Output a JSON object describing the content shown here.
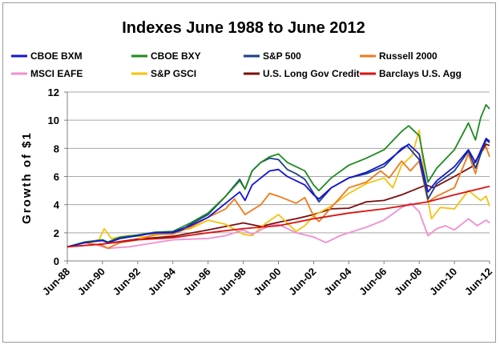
{
  "chart_data": {
    "type": "line",
    "title": "Indexes June 1988 to June 2012",
    "xlabel": "",
    "ylabel": "Growth of $1",
    "ylim": [
      0,
      12
    ],
    "yticks": [
      0,
      2,
      4,
      6,
      8,
      10,
      12
    ],
    "xlim": [
      1988.5,
      2012.5
    ],
    "xticks": [
      {
        "x": 1988.5,
        "label": "Jun-88"
      },
      {
        "x": 1990.5,
        "label": "Jun-90"
      },
      {
        "x": 1992.5,
        "label": "Jun-92"
      },
      {
        "x": 1994.5,
        "label": "Jun-94"
      },
      {
        "x": 1996.5,
        "label": "Jun-96"
      },
      {
        "x": 1998.5,
        "label": "Jun-98"
      },
      {
        "x": 2000.5,
        "label": "Jun-00"
      },
      {
        "x": 2002.5,
        "label": "Jun-02"
      },
      {
        "x": 2004.5,
        "label": "Jun-04"
      },
      {
        "x": 2006.5,
        "label": "Jun-06"
      },
      {
        "x": 2008.5,
        "label": "Jun-08"
      },
      {
        "x": 2010.5,
        "label": "Jun-10"
      },
      {
        "x": 2012.5,
        "label": "Jun-12"
      }
    ],
    "grid": "horizontal",
    "legend_position": "top",
    "series": [
      {
        "name": "U.S. Long Gov Credit",
        "color": "#7a0d0d",
        "points": [
          [
            1988.5,
            1.0
          ],
          [
            1990.5,
            1.2
          ],
          [
            1992.5,
            1.55
          ],
          [
            1994.5,
            1.75
          ],
          [
            1996.5,
            2.2
          ],
          [
            1998.5,
            2.7
          ],
          [
            1999.5,
            2.45
          ],
          [
            2000.5,
            2.75
          ],
          [
            2001.5,
            3.0
          ],
          [
            2002.5,
            3.3
          ],
          [
            2003.5,
            3.7
          ],
          [
            2004.5,
            3.75
          ],
          [
            2005.5,
            4.2
          ],
          [
            2006.5,
            4.3
          ],
          [
            2007.5,
            4.7
          ],
          [
            2008.5,
            5.2
          ],
          [
            2008.9,
            5.4
          ],
          [
            2009.3,
            5.2
          ],
          [
            2010.5,
            6.0
          ],
          [
            2011.5,
            6.7
          ],
          [
            2012.3,
            8.3
          ],
          [
            2012.5,
            8.2
          ]
        ]
      },
      {
        "name": "S&P GSCI",
        "color": "#f5c20d",
        "points": [
          [
            1988.5,
            1.0
          ],
          [
            1989.5,
            1.3
          ],
          [
            1990.3,
            1.5
          ],
          [
            1990.6,
            2.3
          ],
          [
            1991.0,
            1.6
          ],
          [
            1992.0,
            1.8
          ],
          [
            1993.0,
            1.7
          ],
          [
            1993.8,
            1.9
          ],
          [
            1994.5,
            2.1
          ],
          [
            1995.5,
            2.3
          ],
          [
            1996.5,
            2.9
          ],
          [
            1997.5,
            2.6
          ],
          [
            1998.5,
            1.9
          ],
          [
            1999.0,
            1.8
          ],
          [
            1999.7,
            2.6
          ],
          [
            2000.5,
            3.3
          ],
          [
            2001.5,
            2.1
          ],
          [
            2002.0,
            2.5
          ],
          [
            2002.5,
            3.2
          ],
          [
            2003.5,
            3.9
          ],
          [
            2004.5,
            4.8
          ],
          [
            2005.5,
            5.5
          ],
          [
            2006.5,
            5.9
          ],
          [
            2007.0,
            5.2
          ],
          [
            2007.5,
            6.8
          ],
          [
            2008.1,
            7.5
          ],
          [
            2008.5,
            9.3
          ],
          [
            2008.9,
            5.0
          ],
          [
            2009.2,
            3.0
          ],
          [
            2009.7,
            3.8
          ],
          [
            2010.5,
            3.7
          ],
          [
            2011.3,
            5.0
          ],
          [
            2011.8,
            4.5
          ],
          [
            2012.0,
            4.3
          ],
          [
            2012.3,
            4.6
          ],
          [
            2012.5,
            3.9
          ]
        ]
      },
      {
        "name": "MSCI EAFE",
        "color": "#f08ed0",
        "points": [
          [
            1988.5,
            1.0
          ],
          [
            1989.5,
            1.3
          ],
          [
            1990.3,
            1.1
          ],
          [
            1990.8,
            0.9
          ],
          [
            1992.0,
            1.0
          ],
          [
            1993.5,
            1.3
          ],
          [
            1994.5,
            1.5
          ],
          [
            1996.5,
            1.6
          ],
          [
            1997.5,
            1.8
          ],
          [
            1998.5,
            2.2
          ],
          [
            1999.0,
            1.9
          ],
          [
            2000.0,
            2.5
          ],
          [
            2000.5,
            2.6
          ],
          [
            2001.5,
            2.0
          ],
          [
            2002.5,
            1.7
          ],
          [
            2003.2,
            1.3
          ],
          [
            2004.0,
            1.8
          ],
          [
            2004.5,
            2.0
          ],
          [
            2005.5,
            2.4
          ],
          [
            2006.5,
            2.9
          ],
          [
            2007.5,
            3.8
          ],
          [
            2008.0,
            4.1
          ],
          [
            2008.5,
            3.5
          ],
          [
            2009.0,
            1.8
          ],
          [
            2009.5,
            2.3
          ],
          [
            2010.0,
            2.5
          ],
          [
            2010.5,
            2.2
          ],
          [
            2011.3,
            3.0
          ],
          [
            2011.8,
            2.5
          ],
          [
            2012.3,
            2.9
          ],
          [
            2012.5,
            2.7
          ]
        ]
      },
      {
        "name": "Russell 2000",
        "color": "#f07a1a",
        "points": [
          [
            1988.5,
            1.0
          ],
          [
            1989.5,
            1.3
          ],
          [
            1990.5,
            1.1
          ],
          [
            1990.8,
            0.9
          ],
          [
            1991.5,
            1.3
          ],
          [
            1992.5,
            1.5
          ],
          [
            1993.5,
            1.9
          ],
          [
            1994.5,
            1.9
          ],
          [
            1995.5,
            2.4
          ],
          [
            1996.5,
            3.1
          ],
          [
            1997.5,
            3.7
          ],
          [
            1998.0,
            4.4
          ],
          [
            1998.6,
            3.3
          ],
          [
            1999.5,
            4.0
          ],
          [
            2000.0,
            4.8
          ],
          [
            2000.5,
            4.6
          ],
          [
            2001.5,
            4.1
          ],
          [
            2002.0,
            4.5
          ],
          [
            2002.5,
            3.2
          ],
          [
            2002.8,
            2.8
          ],
          [
            2003.5,
            3.8
          ],
          [
            2004.5,
            5.2
          ],
          [
            2005.5,
            5.6
          ],
          [
            2006.3,
            6.4
          ],
          [
            2006.8,
            5.9
          ],
          [
            2007.5,
            7.1
          ],
          [
            2008.0,
            6.4
          ],
          [
            2008.5,
            7.1
          ],
          [
            2009.0,
            4.2
          ],
          [
            2009.5,
            4.6
          ],
          [
            2010.5,
            5.2
          ],
          [
            2011.3,
            7.6
          ],
          [
            2011.7,
            6.2
          ],
          [
            2012.0,
            7.7
          ],
          [
            2012.3,
            8.1
          ],
          [
            2012.5,
            7.4
          ]
        ]
      },
      {
        "name": "S&P 500",
        "color": "#1a3d8a",
        "points": [
          [
            1988.5,
            1.0
          ],
          [
            1989.5,
            1.3
          ],
          [
            1990.5,
            1.5
          ],
          [
            1990.8,
            1.3
          ],
          [
            1991.5,
            1.6
          ],
          [
            1992.5,
            1.8
          ],
          [
            1993.5,
            2.0
          ],
          [
            1994.5,
            2.0
          ],
          [
            1995.0,
            2.2
          ],
          [
            1995.5,
            2.6
          ],
          [
            1996.5,
            3.3
          ],
          [
            1997.5,
            4.6
          ],
          [
            1998.3,
            5.8
          ],
          [
            1998.6,
            5.1
          ],
          [
            1999.0,
            6.4
          ],
          [
            1999.5,
            7.0
          ],
          [
            2000.0,
            7.3
          ],
          [
            2000.5,
            7.2
          ],
          [
            2001.0,
            6.5
          ],
          [
            2001.5,
            6.2
          ],
          [
            2002.0,
            5.8
          ],
          [
            2002.5,
            4.8
          ],
          [
            2002.8,
            4.2
          ],
          [
            2003.5,
            5.2
          ],
          [
            2004.5,
            5.9
          ],
          [
            2005.5,
            6.2
          ],
          [
            2006.5,
            6.7
          ],
          [
            2007.5,
            8.0
          ],
          [
            2007.8,
            8.2
          ],
          [
            2008.5,
            7.2
          ],
          [
            2009.0,
            4.4
          ],
          [
            2009.5,
            5.5
          ],
          [
            2010.5,
            6.4
          ],
          [
            2011.3,
            7.8
          ],
          [
            2011.7,
            6.6
          ],
          [
            2012.3,
            8.6
          ],
          [
            2012.5,
            8.4
          ]
        ]
      },
      {
        "name": "CBOE BXY",
        "color": "#1e8a1e",
        "points": [
          [
            1988.5,
            1.0
          ],
          [
            1989.5,
            1.35
          ],
          [
            1990.5,
            1.5
          ],
          [
            1990.8,
            1.35
          ],
          [
            1991.5,
            1.7
          ],
          [
            1992.5,
            1.85
          ],
          [
            1993.5,
            2.05
          ],
          [
            1994.5,
            2.1
          ],
          [
            1995.5,
            2.7
          ],
          [
            1996.5,
            3.4
          ],
          [
            1997.5,
            4.6
          ],
          [
            1998.3,
            5.7
          ],
          [
            1998.6,
            5.1
          ],
          [
            1999.0,
            6.4
          ],
          [
            1999.5,
            7.0
          ],
          [
            2000.0,
            7.4
          ],
          [
            2000.5,
            7.6
          ],
          [
            2001.0,
            7.0
          ],
          [
            2001.5,
            6.7
          ],
          [
            2002.0,
            6.4
          ],
          [
            2002.5,
            5.4
          ],
          [
            2002.8,
            5.0
          ],
          [
            2003.5,
            5.9
          ],
          [
            2004.5,
            6.8
          ],
          [
            2005.5,
            7.3
          ],
          [
            2006.5,
            7.9
          ],
          [
            2007.5,
            9.2
          ],
          [
            2007.9,
            9.6
          ],
          [
            2008.5,
            8.9
          ],
          [
            2009.0,
            5.6
          ],
          [
            2009.5,
            6.6
          ],
          [
            2010.5,
            7.9
          ],
          [
            2011.3,
            9.8
          ],
          [
            2011.7,
            8.6
          ],
          [
            2012.0,
            10.2
          ],
          [
            2012.3,
            11.1
          ],
          [
            2012.5,
            10.8
          ]
        ]
      },
      {
        "name": "CBOE BXM",
        "color": "#1414d2",
        "points": [
          [
            1988.5,
            1.0
          ],
          [
            1989.5,
            1.3
          ],
          [
            1990.5,
            1.45
          ],
          [
            1990.8,
            1.3
          ],
          [
            1991.5,
            1.6
          ],
          [
            1992.5,
            1.8
          ],
          [
            1993.5,
            2.0
          ],
          [
            1994.5,
            2.05
          ],
          [
            1995.5,
            2.5
          ],
          [
            1996.5,
            3.1
          ],
          [
            1997.5,
            4.1
          ],
          [
            1998.3,
            4.9
          ],
          [
            1998.6,
            4.3
          ],
          [
            1999.0,
            5.4
          ],
          [
            1999.5,
            5.9
          ],
          [
            2000.0,
            6.4
          ],
          [
            2000.5,
            6.5
          ],
          [
            2001.0,
            6.0
          ],
          [
            2001.5,
            5.7
          ],
          [
            2002.0,
            5.4
          ],
          [
            2002.5,
            4.7
          ],
          [
            2002.8,
            4.4
          ],
          [
            2003.5,
            5.2
          ],
          [
            2004.5,
            5.9
          ],
          [
            2005.5,
            6.3
          ],
          [
            2006.5,
            6.9
          ],
          [
            2007.5,
            7.9
          ],
          [
            2007.9,
            8.3
          ],
          [
            2008.5,
            7.6
          ],
          [
            2009.0,
            4.9
          ],
          [
            2009.5,
            5.7
          ],
          [
            2010.5,
            6.7
          ],
          [
            2011.3,
            7.9
          ],
          [
            2011.7,
            7.0
          ],
          [
            2012.3,
            8.7
          ],
          [
            2012.5,
            8.5
          ]
        ]
      },
      {
        "name": "Barclays U.S. Agg",
        "color": "#dd1111",
        "points": [
          [
            1988.5,
            1.0
          ],
          [
            1990.5,
            1.2
          ],
          [
            1992.5,
            1.5
          ],
          [
            1994.5,
            1.65
          ],
          [
            1996.5,
            2.0
          ],
          [
            1998.5,
            2.3
          ],
          [
            2000.5,
            2.5
          ],
          [
            2002.5,
            3.0
          ],
          [
            2004.5,
            3.4
          ],
          [
            2006.5,
            3.7
          ],
          [
            2008.5,
            4.1
          ],
          [
            2009.0,
            4.2
          ],
          [
            2010.5,
            4.7
          ],
          [
            2012.5,
            5.3
          ]
        ]
      }
    ],
    "legend": [
      {
        "label": "CBOE BXM",
        "color": "#1414d2"
      },
      {
        "label": "CBOE BXY",
        "color": "#1e8a1e"
      },
      {
        "label": "S&P 500",
        "color": "#1a3d8a"
      },
      {
        "label": "Russell 2000",
        "color": "#f07a1a"
      },
      {
        "label": "MSCI EAFE",
        "color": "#f08ed0"
      },
      {
        "label": "S&P GSCI",
        "color": "#f5c20d"
      },
      {
        "label": "U.S. Long Gov Credit",
        "color": "#7a0d0d"
      },
      {
        "label": "Barclays U.S. Agg",
        "color": "#dd1111"
      }
    ]
  }
}
